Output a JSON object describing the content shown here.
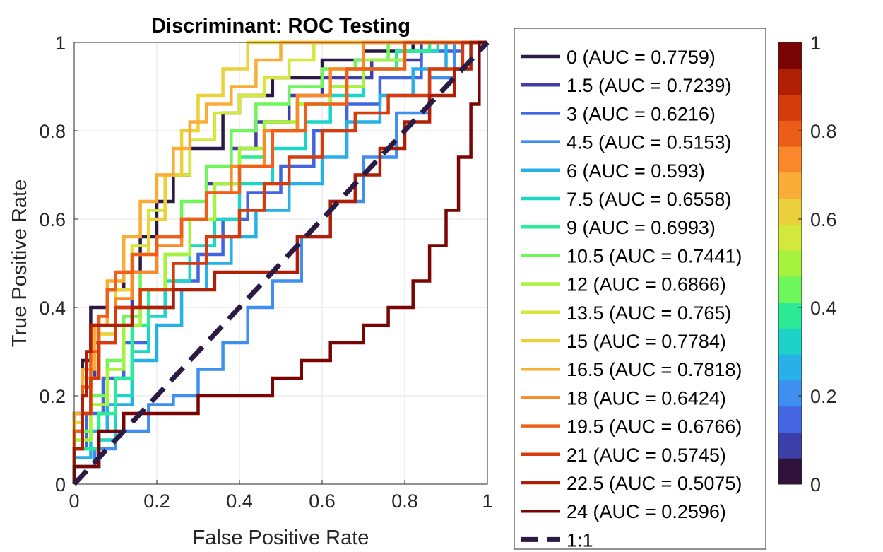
{
  "chart_data": {
    "type": "line",
    "title": "Discriminant: ROC Testing",
    "xlabel": "False Positive Rate",
    "ylabel": "True Positive Rate",
    "xlim": [
      0,
      1
    ],
    "ylim": [
      0,
      1
    ],
    "xticks": [
      "0",
      "0.2",
      "0.4",
      "0.6",
      "0.8",
      "1"
    ],
    "yticks": [
      "0",
      "0.2",
      "0.4",
      "0.6",
      "0.8",
      "1"
    ],
    "grid": true,
    "legend_position": "right",
    "series": [
      {
        "name": "0 (AUC = 0.7759)",
        "color": "#2b1a44",
        "x": [
          0,
          0.02,
          0.04,
          0.08,
          0.12,
          0.16,
          0.2,
          0.24,
          0.28,
          0.36,
          0.4,
          0.48,
          0.6,
          0.7,
          0.82,
          0.9,
          1
        ],
        "y": [
          0,
          0.16,
          0.28,
          0.4,
          0.44,
          0.48,
          0.56,
          0.64,
          0.7,
          0.76,
          0.84,
          0.88,
          0.92,
          0.96,
          0.98,
          1,
          1
        ]
      },
      {
        "name": "1.5 (AUC = 0.7239)",
        "color": "#3f3fa6",
        "x": [
          0,
          0.02,
          0.05,
          0.1,
          0.14,
          0.2,
          0.26,
          0.32,
          0.38,
          0.44,
          0.52,
          0.6,
          0.72,
          0.84,
          0.92,
          1
        ],
        "y": [
          0,
          0.12,
          0.24,
          0.32,
          0.4,
          0.48,
          0.56,
          0.6,
          0.68,
          0.76,
          0.82,
          0.88,
          0.92,
          0.96,
          1,
          1
        ]
      },
      {
        "name": "3 (AUC = 0.6216)",
        "color": "#4164e0",
        "x": [
          0,
          0.03,
          0.07,
          0.12,
          0.18,
          0.24,
          0.3,
          0.36,
          0.42,
          0.5,
          0.58,
          0.66,
          0.74,
          0.84,
          0.94,
          1
        ],
        "y": [
          0,
          0.08,
          0.16,
          0.24,
          0.32,
          0.4,
          0.46,
          0.52,
          0.6,
          0.66,
          0.72,
          0.8,
          0.86,
          0.92,
          0.98,
          1
        ]
      },
      {
        "name": "4.5 (AUC = 0.5153)",
        "color": "#3f8ff0",
        "x": [
          0,
          0.05,
          0.1,
          0.18,
          0.24,
          0.3,
          0.36,
          0.42,
          0.48,
          0.55,
          0.62,
          0.7,
          0.78,
          0.86,
          0.92,
          1
        ],
        "y": [
          0,
          0.04,
          0.08,
          0.12,
          0.18,
          0.2,
          0.26,
          0.32,
          0.4,
          0.46,
          0.56,
          0.64,
          0.74,
          0.84,
          0.92,
          1
        ]
      },
      {
        "name": "6 (AUC = 0.593)",
        "color": "#27b0e6",
        "x": [
          0,
          0.04,
          0.08,
          0.14,
          0.2,
          0.26,
          0.32,
          0.38,
          0.44,
          0.52,
          0.6,
          0.66,
          0.74,
          0.82,
          0.9,
          1
        ],
        "y": [
          0,
          0.06,
          0.12,
          0.18,
          0.28,
          0.36,
          0.44,
          0.5,
          0.56,
          0.62,
          0.68,
          0.74,
          0.82,
          0.88,
          0.94,
          1
        ]
      },
      {
        "name": "7.5 (AUC = 0.6558)",
        "color": "#1cd5c7",
        "x": [
          0,
          0.06,
          0.1,
          0.14,
          0.18,
          0.22,
          0.28,
          0.34,
          0.4,
          0.48,
          0.56,
          0.62,
          0.7,
          0.78,
          0.88,
          1
        ],
        "y": [
          0,
          0.04,
          0.1,
          0.2,
          0.3,
          0.38,
          0.46,
          0.54,
          0.6,
          0.68,
          0.76,
          0.82,
          0.88,
          0.94,
          0.98,
          1
        ]
      },
      {
        "name": "9 (AUC = 0.6993)",
        "color": "#2aec94",
        "x": [
          0,
          0.06,
          0.1,
          0.14,
          0.18,
          0.22,
          0.28,
          0.34,
          0.4,
          0.46,
          0.54,
          0.62,
          0.7,
          0.78,
          0.86,
          1
        ],
        "y": [
          0,
          0.08,
          0.16,
          0.24,
          0.36,
          0.44,
          0.52,
          0.6,
          0.68,
          0.74,
          0.8,
          0.86,
          0.9,
          0.94,
          0.98,
          1
        ]
      },
      {
        "name": "10.5 (AUC = 0.7441)",
        "color": "#6ef65a",
        "x": [
          0,
          0.04,
          0.08,
          0.12,
          0.16,
          0.2,
          0.26,
          0.32,
          0.38,
          0.44,
          0.52,
          0.6,
          0.68,
          0.76,
          0.86,
          1
        ],
        "y": [
          0,
          0.12,
          0.2,
          0.28,
          0.38,
          0.48,
          0.56,
          0.64,
          0.72,
          0.8,
          0.86,
          0.9,
          0.94,
          0.96,
          1,
          1
        ]
      },
      {
        "name": "12 (AUC = 0.6866)",
        "color": "#a8f23c",
        "x": [
          0,
          0.04,
          0.08,
          0.12,
          0.16,
          0.22,
          0.28,
          0.34,
          0.4,
          0.46,
          0.54,
          0.62,
          0.7,
          0.8,
          0.9,
          1
        ],
        "y": [
          0,
          0.1,
          0.18,
          0.26,
          0.36,
          0.44,
          0.52,
          0.6,
          0.68,
          0.76,
          0.82,
          0.86,
          0.9,
          0.96,
          1,
          1
        ]
      },
      {
        "name": "13.5 (AUC = 0.765)",
        "color": "#d4e73a",
        "x": [
          0,
          0.02,
          0.06,
          0.1,
          0.14,
          0.18,
          0.22,
          0.28,
          0.34,
          0.4,
          0.46,
          0.52,
          0.58,
          0.66,
          0.76,
          1
        ],
        "y": [
          0,
          0.14,
          0.24,
          0.34,
          0.44,
          0.54,
          0.62,
          0.7,
          0.78,
          0.84,
          0.88,
          0.92,
          0.96,
          1,
          1,
          1
        ]
      },
      {
        "name": "15 (AUC = 0.7784)",
        "color": "#ebd13a",
        "x": [
          0,
          0.02,
          0.06,
          0.1,
          0.14,
          0.18,
          0.22,
          0.26,
          0.3,
          0.36,
          0.42,
          0.48,
          0.56,
          0.66,
          0.8,
          1
        ],
        "y": [
          0,
          0.14,
          0.24,
          0.34,
          0.44,
          0.52,
          0.6,
          0.7,
          0.8,
          0.88,
          0.94,
          1,
          1,
          1,
          1,
          1
        ]
      },
      {
        "name": "16.5 (AUC = 0.7818)",
        "color": "#f9ad37",
        "x": [
          0,
          0.02,
          0.05,
          0.08,
          0.12,
          0.16,
          0.2,
          0.24,
          0.28,
          0.32,
          0.38,
          0.44,
          0.5,
          0.6,
          0.74,
          1
        ],
        "y": [
          0,
          0.16,
          0.26,
          0.36,
          0.46,
          0.56,
          0.64,
          0.7,
          0.76,
          0.82,
          0.86,
          0.9,
          0.96,
          1,
          1,
          1
        ]
      },
      {
        "name": "18 (AUC = 0.6424)",
        "color": "#fb8a2b",
        "x": [
          0,
          0.02,
          0.04,
          0.06,
          0.1,
          0.14,
          0.2,
          0.26,
          0.32,
          0.38,
          0.46,
          0.54,
          0.62,
          0.7,
          0.82,
          1
        ],
        "y": [
          0,
          0.08,
          0.16,
          0.24,
          0.32,
          0.42,
          0.48,
          0.54,
          0.6,
          0.66,
          0.72,
          0.8,
          0.88,
          0.94,
          1,
          1
        ]
      },
      {
        "name": "19.5 (AUC = 0.6766)",
        "color": "#ef5f1a",
        "x": [
          0,
          0.02,
          0.04,
          0.06,
          0.08,
          0.1,
          0.14,
          0.2,
          0.26,
          0.32,
          0.4,
          0.48,
          0.56,
          0.66,
          0.8,
          1
        ],
        "y": [
          0,
          0.12,
          0.22,
          0.3,
          0.38,
          0.44,
          0.48,
          0.52,
          0.56,
          0.6,
          0.66,
          0.72,
          0.8,
          0.86,
          0.94,
          1
        ]
      },
      {
        "name": "21 (AUC = 0.5745)",
        "color": "#d63b0d",
        "x": [
          0,
          0.02,
          0.04,
          0.06,
          0.1,
          0.16,
          0.24,
          0.32,
          0.4,
          0.46,
          0.52,
          0.6,
          0.68,
          0.76,
          0.86,
          0.94,
          1
        ],
        "y": [
          0,
          0.08,
          0.16,
          0.24,
          0.32,
          0.4,
          0.44,
          0.5,
          0.56,
          0.62,
          0.68,
          0.74,
          0.8,
          0.84,
          0.88,
          0.94,
          1
        ]
      },
      {
        "name": "22.5 (AUC = 0.5075)",
        "color": "#ae1f04",
        "x": [
          0,
          0.02,
          0.03,
          0.04,
          0.08,
          0.14,
          0.24,
          0.34,
          0.44,
          0.54,
          0.62,
          0.68,
          0.74,
          0.8,
          0.86,
          0.92,
          0.96,
          1
        ],
        "y": [
          0,
          0.08,
          0.2,
          0.3,
          0.36,
          0.36,
          0.4,
          0.44,
          0.48,
          0.48,
          0.56,
          0.64,
          0.7,
          0.76,
          0.82,
          0.88,
          0.94,
          1
        ]
      },
      {
        "name": "24 (AUC = 0.2596)",
        "color": "#7a0403",
        "x": [
          0,
          0.06,
          0.12,
          0.2,
          0.3,
          0.4,
          0.48,
          0.55,
          0.62,
          0.7,
          0.76,
          0.82,
          0.86,
          0.9,
          0.93,
          0.96,
          0.98,
          1
        ],
        "y": [
          0,
          0.04,
          0.12,
          0.16,
          0.16,
          0.2,
          0.2,
          0.24,
          0.28,
          0.32,
          0.36,
          0.4,
          0.46,
          0.54,
          0.62,
          0.74,
          0.86,
          1
        ]
      },
      {
        "name": "1:1",
        "color": "#2b1a44",
        "dashed": true,
        "x": [
          0,
          1
        ],
        "y": [
          0,
          1
        ]
      }
    ],
    "colorbar": {
      "ticks": [
        "0",
        "0.2",
        "0.4",
        "0.6",
        "0.8",
        "1"
      ],
      "colors": [
        "#30123b",
        "#3c3fa8",
        "#4466e4",
        "#3f8ff0",
        "#28b1e8",
        "#1dd2c8",
        "#2aea96",
        "#6ef75a",
        "#a6f33d",
        "#d2e83b",
        "#ead03a",
        "#faae37",
        "#fa882b",
        "#ec5d19",
        "#d43c0c",
        "#b01f04",
        "#7a0403"
      ]
    }
  }
}
